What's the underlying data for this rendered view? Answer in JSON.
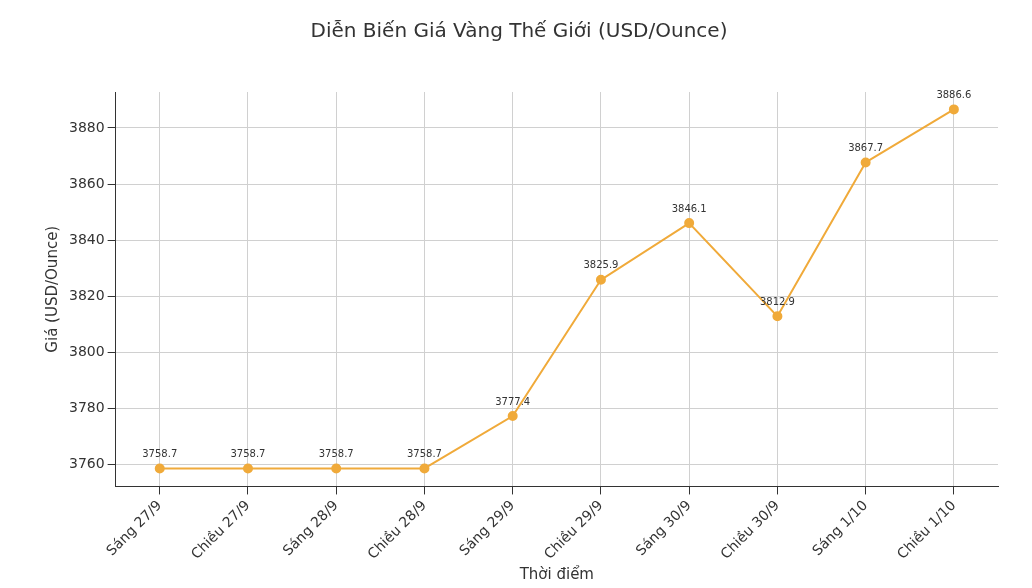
{
  "chart_data": {
    "type": "line",
    "title": "Diễn Biến Giá Vàng Thế Giới (USD/Ounce)",
    "xlabel": "Thời điểm",
    "ylabel": "Giá (USD/Ounce)",
    "categories": [
      "Sáng 27/9",
      "Chiều 27/9",
      "Sáng 28/9",
      "Chiều 28/9",
      "Sáng 29/9",
      "Chiều 29/9",
      "Sáng 30/9",
      "Chiều 30/9",
      "Sáng 1/10",
      "Chiều 1/10"
    ],
    "series": [
      {
        "color": "#f0aa3a",
        "values": [
          3758.7,
          3758.7,
          3758.7,
          3758.7,
          3777.4,
          3825.9,
          3846.1,
          3812.9,
          3867.7,
          3886.6
        ]
      }
    ],
    "ylim": [
      3752.3,
      3892.8
    ],
    "yticks": [
      3760,
      3780,
      3800,
      3820,
      3840,
      3860,
      3880
    ],
    "grid": true,
    "marker": "circle",
    "line_style": "solid",
    "data_labels": true,
    "legend": false
  }
}
